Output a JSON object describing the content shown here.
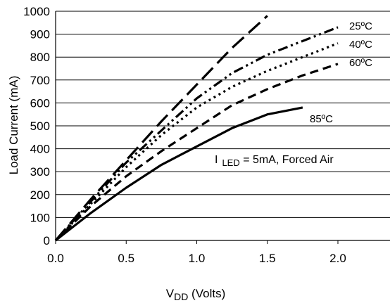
{
  "chart_data": {
    "type": "line",
    "xlabel_main": "V",
    "xlabel_sub": "DD",
    "xlabel_rest": " (Volts)",
    "ylabel": "Load Current (mA)",
    "xlim": [
      0,
      2.4
    ],
    "ylim": [
      0,
      1000
    ],
    "x_ticks": [
      "0.0",
      "0.5",
      "1.0",
      "1.5",
      "2.0"
    ],
    "y_ticks": [
      "0",
      "100",
      "200",
      "300",
      "400",
      "500",
      "600",
      "700",
      "800",
      "900",
      "1000"
    ],
    "grid": "horizontal",
    "annotation": {
      "prefix": "I",
      "sub": "LED",
      "rest": " = 5mA, Forced Air"
    },
    "series": [
      {
        "style": "long-dash",
        "x": [
          0.0,
          0.25,
          0.5,
          0.75,
          1.0,
          1.25,
          1.5
        ],
        "y": [
          0,
          180,
          350,
          520,
          680,
          840,
          980
        ]
      },
      {
        "name": "25ºC",
        "style": "dash-dot-dot",
        "x": [
          0.0,
          0.25,
          0.5,
          0.75,
          1.0,
          1.25,
          1.5,
          1.75,
          2.0
        ],
        "y": [
          0,
          170,
          340,
          480,
          620,
          730,
          810,
          870,
          930
        ]
      },
      {
        "name": "40ºC",
        "style": "dotted",
        "x": [
          0.0,
          0.25,
          0.5,
          0.75,
          1.0,
          1.25,
          1.5,
          1.75,
          2.0
        ],
        "y": [
          0,
          160,
          320,
          460,
          580,
          670,
          740,
          800,
          860
        ]
      },
      {
        "name": "60ºC",
        "style": "dashed",
        "x": [
          0.0,
          0.25,
          0.5,
          0.75,
          1.0,
          1.25,
          1.5,
          1.75,
          2.0
        ],
        "y": [
          0,
          150,
          280,
          390,
          490,
          590,
          660,
          720,
          770
        ]
      },
      {
        "name": "85ºC",
        "style": "solid",
        "x": [
          0.0,
          0.25,
          0.5,
          0.75,
          1.0,
          1.25,
          1.5,
          1.75
        ],
        "y": [
          0,
          120,
          230,
          330,
          410,
          490,
          550,
          580
        ]
      }
    ]
  }
}
